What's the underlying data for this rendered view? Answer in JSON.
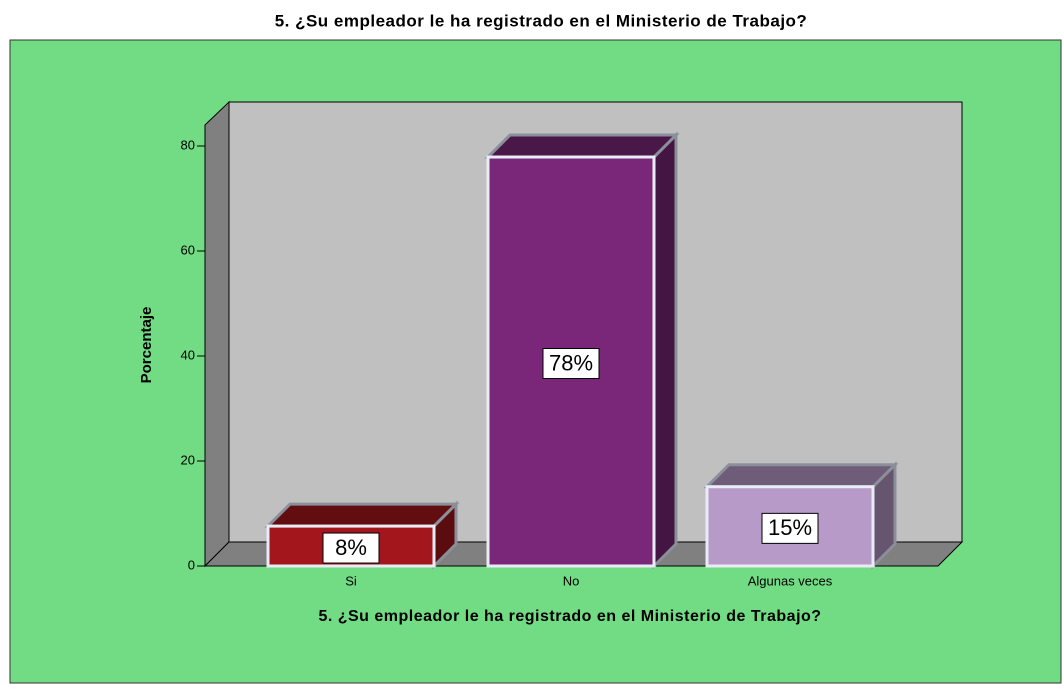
{
  "chart_data": {
    "type": "bar3d",
    "title": "5. ¿Su empleador le ha registrado en el Ministerio de Trabajo?",
    "x_label": "5. ¿Su empleador le ha registrado en el Ministerio de Trabajo?",
    "y_label": "Porcentaje",
    "categories": [
      "Si",
      "No",
      "Algunas veces"
    ],
    "values": [
      7.6,
      77.9,
      15.1
    ],
    "value_labels": [
      "8%",
      "78%",
      "15%"
    ],
    "colors": [
      "#a3161b",
      "#7b2779",
      "#b79ac8"
    ],
    "ylim": [
      0,
      84
    ],
    "yticks": [
      0,
      20,
      40,
      60,
      80
    ]
  }
}
